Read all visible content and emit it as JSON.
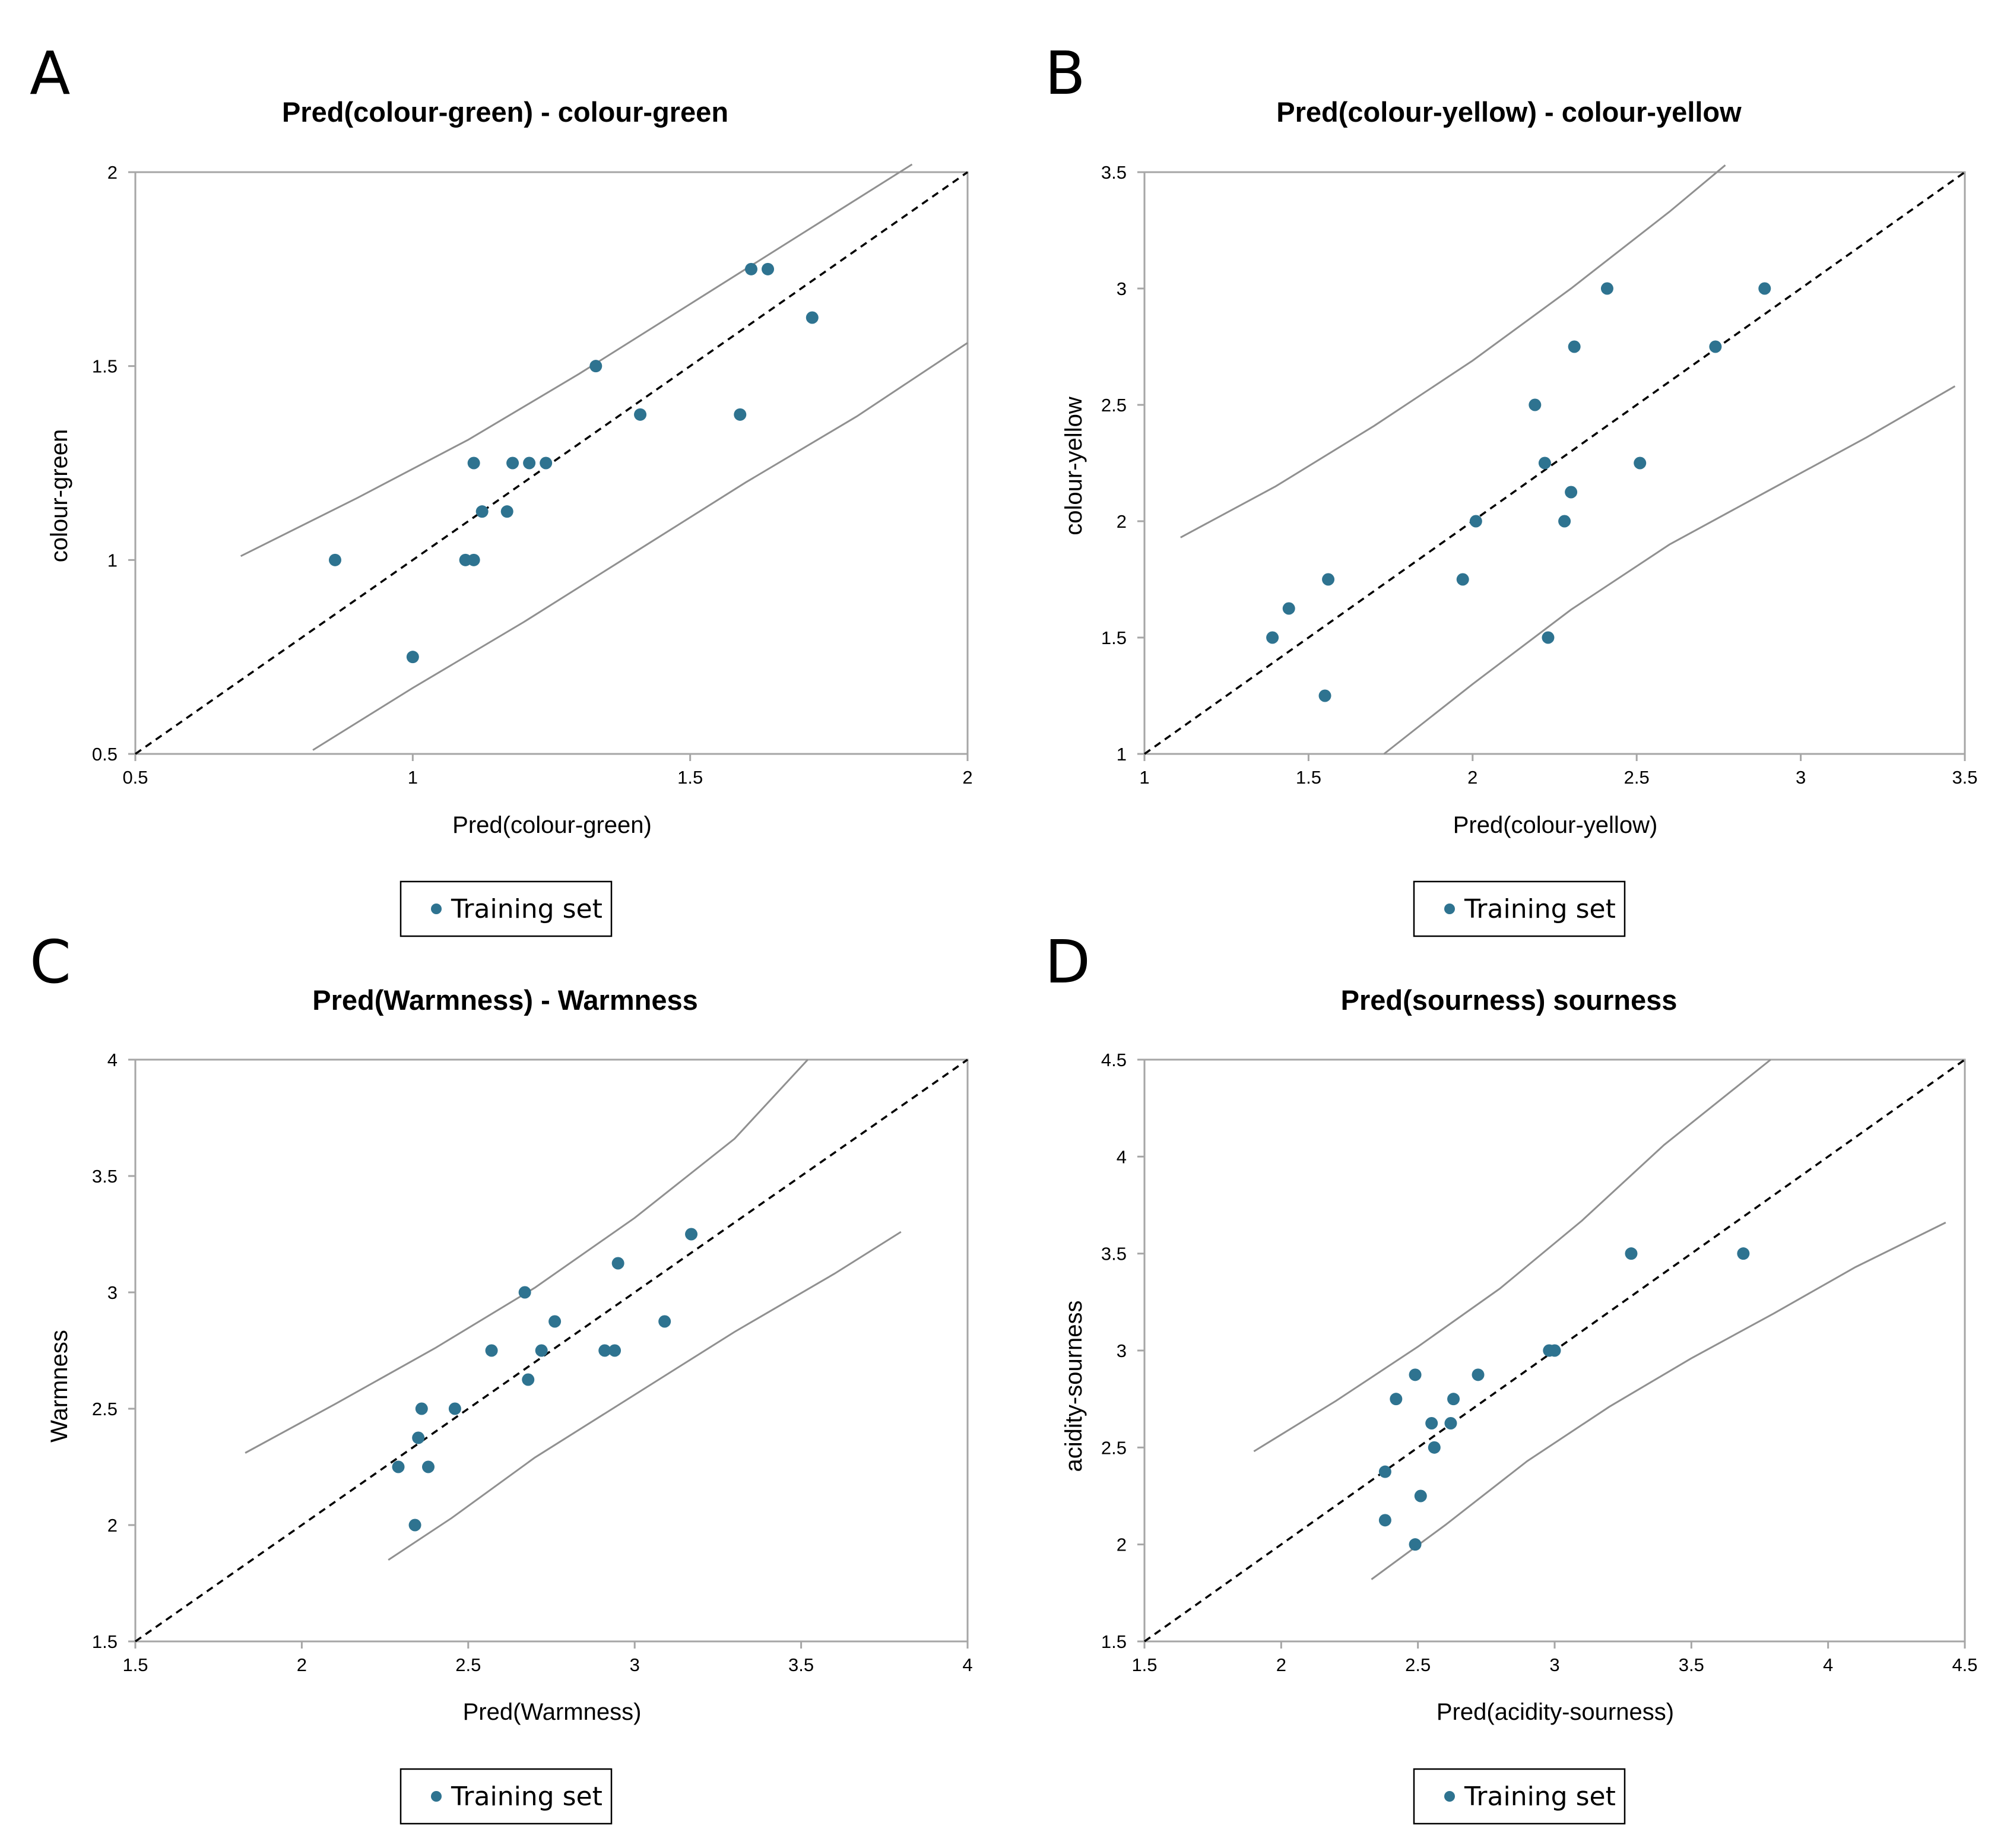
{
  "colors": {
    "marker": "#2e7390",
    "axis": "#a6a6a6",
    "band": "#909090",
    "diagonal": "#000000",
    "text": "#000000"
  },
  "chart_data": [
    {
      "panel": "A",
      "type": "scatter",
      "title": "Pred(colour-green) - colour-green",
      "xlabel": "Pred(colour-green)",
      "ylabel": "colour-green",
      "xlim": [
        0.5,
        2
      ],
      "ylim": [
        0.5,
        2
      ],
      "xticks": [
        0.5,
        1,
        1.5,
        2
      ],
      "yticks": [
        0.5,
        1,
        1.5,
        2
      ],
      "xtick_labels": [
        "0.5",
        "1",
        "1.5",
        "2"
      ],
      "ytick_labels": [
        "0.5",
        "1",
        "1.5",
        "2"
      ],
      "legend": "Training set",
      "series": [
        {
          "name": "Training set",
          "points": [
            [
              0.86,
              1.0
            ],
            [
              1.0,
              0.75
            ],
            [
              1.095,
              1.0
            ],
            [
              1.11,
              1.0
            ],
            [
              1.11,
              1.25
            ],
            [
              1.125,
              1.125
            ],
            [
              1.17,
              1.125
            ],
            [
              1.18,
              1.25
            ],
            [
              1.21,
              1.25
            ],
            [
              1.24,
              1.25
            ],
            [
              1.33,
              1.5
            ],
            [
              1.41,
              1.375
            ],
            [
              1.59,
              1.375
            ],
            [
              1.61,
              1.75
            ],
            [
              1.64,
              1.75
            ],
            [
              1.72,
              1.625
            ]
          ]
        }
      ],
      "confidence_upper": [
        [
          0.69,
          1.01
        ],
        [
          0.9,
          1.16
        ],
        [
          1.1,
          1.31
        ],
        [
          1.3,
          1.48
        ],
        [
          1.5,
          1.66
        ],
        [
          1.7,
          1.84
        ],
        [
          1.9,
          2.02
        ]
      ],
      "confidence_lower": [
        [
          0.82,
          0.51
        ],
        [
          1.0,
          0.67
        ],
        [
          1.2,
          0.84
        ],
        [
          1.4,
          1.02
        ],
        [
          1.6,
          1.2
        ],
        [
          1.8,
          1.37
        ],
        [
          2.0,
          1.56
        ]
      ],
      "diagonal": [
        [
          0.5,
          0.5
        ],
        [
          2,
          2
        ]
      ]
    },
    {
      "panel": "B",
      "type": "scatter",
      "title": "Pred(colour-yellow) - colour-yellow",
      "xlabel": "Pred(colour-yellow)",
      "ylabel": "colour-yellow",
      "xlim": [
        1,
        3.5
      ],
      "ylim": [
        1,
        3.5
      ],
      "xticks": [
        1,
        1.5,
        2,
        2.5,
        3,
        3.5
      ],
      "yticks": [
        1,
        1.5,
        2,
        2.5,
        3,
        3.5
      ],
      "xtick_labels": [
        "1",
        "1.5",
        "2",
        "2.5",
        "3",
        "3.5"
      ],
      "ytick_labels": [
        "1",
        "1.5",
        "2",
        "2.5",
        "3",
        "3.5"
      ],
      "legend": "Training set",
      "series": [
        {
          "name": "Training set",
          "points": [
            [
              1.39,
              1.5
            ],
            [
              1.44,
              1.625
            ],
            [
              1.55,
              1.25
            ],
            [
              1.56,
              1.75
            ],
            [
              1.97,
              1.75
            ],
            [
              2.01,
              2.0
            ],
            [
              2.19,
              2.5
            ],
            [
              2.22,
              2.25
            ],
            [
              2.23,
              1.5
            ],
            [
              2.28,
              2.0
            ],
            [
              2.3,
              2.125
            ],
            [
              2.31,
              2.75
            ],
            [
              2.41,
              3.0
            ],
            [
              2.51,
              2.25
            ],
            [
              2.74,
              2.75
            ],
            [
              2.89,
              3.0
            ]
          ]
        }
      ],
      "confidence_upper": [
        [
          1.11,
          1.93
        ],
        [
          1.4,
          2.15
        ],
        [
          1.7,
          2.41
        ],
        [
          2.0,
          2.69
        ],
        [
          2.3,
          3.0
        ],
        [
          2.6,
          3.33
        ],
        [
          2.77,
          3.53
        ]
      ],
      "confidence_lower": [
        [
          1.73,
          1.0
        ],
        [
          2.0,
          1.3
        ],
        [
          2.3,
          1.62
        ],
        [
          2.6,
          1.9
        ],
        [
          2.9,
          2.13
        ],
        [
          3.2,
          2.36
        ],
        [
          3.47,
          2.58
        ]
      ],
      "diagonal": [
        [
          1,
          1
        ],
        [
          3.5,
          3.5
        ]
      ]
    },
    {
      "panel": "C",
      "type": "scatter",
      "title": "Pred(Warmness) - Warmness",
      "xlabel": "Pred(Warmness)",
      "ylabel": "Warmness",
      "xlim": [
        1.5,
        4
      ],
      "ylim": [
        1.5,
        4
      ],
      "xticks": [
        1.5,
        2,
        2.5,
        3,
        3.5,
        4
      ],
      "yticks": [
        1.5,
        2,
        2.5,
        3,
        3.5,
        4
      ],
      "xtick_labels": [
        "1.5",
        "2",
        "2.5",
        "3",
        "3.5",
        "4"
      ],
      "ytick_labels": [
        "1.5",
        "2",
        "2.5",
        "3",
        "3.5",
        "4"
      ],
      "legend": "Training set",
      "series": [
        {
          "name": "Training set",
          "points": [
            [
              2.29,
              2.25
            ],
            [
              2.34,
              2.0
            ],
            [
              2.35,
              2.375
            ],
            [
              2.36,
              2.5
            ],
            [
              2.38,
              2.25
            ],
            [
              2.46,
              2.5
            ],
            [
              2.57,
              2.75
            ],
            [
              2.67,
              3.0
            ],
            [
              2.68,
              2.625
            ],
            [
              2.72,
              2.75
            ],
            [
              2.76,
              2.875
            ],
            [
              2.91,
              2.75
            ],
            [
              2.94,
              2.75
            ],
            [
              2.95,
              3.125
            ],
            [
              3.09,
              2.875
            ],
            [
              3.17,
              3.25
            ]
          ]
        }
      ],
      "confidence_upper": [
        [
          1.83,
          2.31
        ],
        [
          2.1,
          2.52
        ],
        [
          2.4,
          2.76
        ],
        [
          2.7,
          3.02
        ],
        [
          3.0,
          3.32
        ],
        [
          3.3,
          3.66
        ],
        [
          3.52,
          4.0
        ]
      ],
      "confidence_lower": [
        [
          2.26,
          1.85
        ],
        [
          2.45,
          2.03
        ],
        [
          2.7,
          2.29
        ],
        [
          3.0,
          2.56
        ],
        [
          3.3,
          2.83
        ],
        [
          3.6,
          3.08
        ],
        [
          3.8,
          3.26
        ]
      ],
      "diagonal": [
        [
          1.5,
          1.5
        ],
        [
          4,
          4
        ]
      ]
    },
    {
      "panel": "D",
      "type": "scatter",
      "title": "Pred(sourness) sourness",
      "xlabel": "Pred(acidity-sourness)",
      "ylabel": "acidity-sourness",
      "xlim": [
        1.5,
        4.5
      ],
      "ylim": [
        1.5,
        4.5
      ],
      "xticks": [
        1.5,
        2,
        2.5,
        3,
        3.5,
        4,
        4.5
      ],
      "yticks": [
        1.5,
        2,
        2.5,
        3,
        3.5,
        4,
        4.5
      ],
      "xtick_labels": [
        "1.5",
        "2",
        "2.5",
        "3",
        "3.5",
        "4",
        "4.5"
      ],
      "ytick_labels": [
        "1.5",
        "2",
        "2.5",
        "3",
        "3.5",
        "4",
        "4.5"
      ],
      "legend": "Training set",
      "series": [
        {
          "name": "Training set",
          "points": [
            [
              2.38,
              2.375
            ],
            [
              2.38,
              2.125
            ],
            [
              2.42,
              2.75
            ],
            [
              2.49,
              2.875
            ],
            [
              2.49,
              2.0
            ],
            [
              2.51,
              2.25
            ],
            [
              2.55,
              2.625
            ],
            [
              2.56,
              2.5
            ],
            [
              2.62,
              2.625
            ],
            [
              2.63,
              2.75
            ],
            [
              2.72,
              2.875
            ],
            [
              2.98,
              3.0
            ],
            [
              3.0,
              3.0
            ],
            [
              3.28,
              3.5
            ],
            [
              3.69,
              3.5
            ]
          ]
        }
      ],
      "confidence_upper": [
        [
          1.9,
          2.48
        ],
        [
          2.2,
          2.74
        ],
        [
          2.5,
          3.02
        ],
        [
          2.8,
          3.32
        ],
        [
          3.1,
          3.67
        ],
        [
          3.4,
          4.06
        ],
        [
          3.79,
          4.5
        ]
      ],
      "confidence_lower": [
        [
          2.33,
          1.82
        ],
        [
          2.6,
          2.1
        ],
        [
          2.9,
          2.43
        ],
        [
          3.2,
          2.71
        ],
        [
          3.5,
          2.96
        ],
        [
          3.8,
          3.19
        ],
        [
          4.1,
          3.43
        ],
        [
          4.43,
          3.66
        ]
      ],
      "diagonal": [
        [
          1.5,
          1.5
        ],
        [
          4.5,
          4.5
        ]
      ]
    }
  ]
}
